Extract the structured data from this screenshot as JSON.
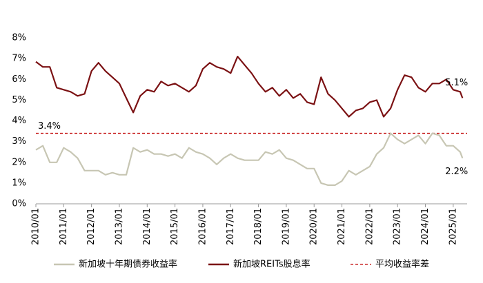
{
  "chart_data": {
    "type": "line",
    "x": [
      "2010/01",
      "2010/04",
      "2010/07",
      "2010/10",
      "2011/01",
      "2011/04",
      "2011/07",
      "2011/10",
      "2012/01",
      "2012/04",
      "2012/07",
      "2012/10",
      "2013/01",
      "2013/04",
      "2013/07",
      "2013/10",
      "2014/01",
      "2014/04",
      "2014/07",
      "2014/10",
      "2015/01",
      "2015/04",
      "2015/07",
      "2015/10",
      "2016/01",
      "2016/04",
      "2016/07",
      "2016/10",
      "2017/01",
      "2017/04",
      "2017/07",
      "2017/10",
      "2018/01",
      "2018/04",
      "2018/07",
      "2018/10",
      "2019/01",
      "2019/04",
      "2019/07",
      "2019/10",
      "2020/01",
      "2020/04",
      "2020/07",
      "2020/10",
      "2021/01",
      "2021/04",
      "2021/07",
      "2021/10",
      "2022/01",
      "2022/04",
      "2022/07",
      "2022/10",
      "2023/01",
      "2023/04",
      "2023/07",
      "2023/10",
      "2024/01",
      "2024/04",
      "2024/07",
      "2024/10",
      "2025/01",
      "2025/04",
      "2025/05"
    ],
    "xlim": [
      "2010/01",
      "2025/07"
    ],
    "xticks": [
      "2010/01",
      "2011/01",
      "2012/01",
      "2013/01",
      "2014/01",
      "2015/01",
      "2016/01",
      "2017/01",
      "2018/01",
      "2019/01",
      "2020/01",
      "2021/01",
      "2022/01",
      "2023/01",
      "2024/01",
      "2025/01"
    ],
    "ylim": [
      0,
      8
    ],
    "yticks": [
      {
        "value": 0,
        "label": "0%"
      },
      {
        "value": 1,
        "label": "1%"
      },
      {
        "value": 2,
        "label": "2%"
      },
      {
        "value": 3,
        "label": "3%"
      },
      {
        "value": 4,
        "label": "4%"
      },
      {
        "value": 5,
        "label": "5%"
      },
      {
        "value": 6,
        "label": "6%"
      },
      {
        "value": 7,
        "label": "7%"
      },
      {
        "value": 8,
        "label": "8%"
      }
    ],
    "grid": false,
    "series": [
      {
        "name": "新加坡十年期债券收益率",
        "color": "#c7c6b3",
        "values": [
          2.6,
          2.8,
          2.0,
          2.0,
          2.7,
          2.5,
          2.2,
          1.6,
          1.6,
          1.6,
          1.4,
          1.5,
          1.4,
          1.4,
          2.7,
          2.5,
          2.6,
          2.4,
          2.4,
          2.3,
          2.4,
          2.2,
          2.7,
          2.5,
          2.4,
          2.2,
          1.9,
          2.2,
          2.4,
          2.2,
          2.1,
          2.1,
          2.1,
          2.5,
          2.4,
          2.6,
          2.2,
          2.1,
          1.9,
          1.7,
          1.7,
          1.0,
          0.9,
          0.9,
          1.1,
          1.6,
          1.4,
          1.6,
          1.8,
          2.4,
          2.7,
          3.4,
          3.1,
          2.9,
          3.1,
          3.3,
          2.9,
          3.4,
          3.3,
          2.8,
          2.8,
          2.5,
          2.2
        ],
        "value_labels": [
          null,
          null,
          null,
          null,
          null,
          null,
          null,
          null,
          null,
          null,
          null,
          null,
          null,
          null,
          null,
          null,
          null,
          null,
          null,
          null,
          null,
          null,
          null,
          null,
          null,
          null,
          null,
          null,
          null,
          null,
          null,
          null,
          null,
          null,
          null,
          null,
          null,
          null,
          null,
          null,
          null,
          null,
          null,
          null,
          null,
          null,
          null,
          null,
          null,
          null,
          null,
          null,
          null,
          null,
          null,
          null,
          null,
          null,
          null,
          null,
          null,
          null,
          "2.2%"
        ]
      },
      {
        "name": "新加坡REITs股息率",
        "color": "#7b1113",
        "values": [
          6.85,
          6.6,
          6.6,
          5.6,
          5.5,
          5.4,
          5.2,
          5.3,
          6.4,
          6.8,
          6.4,
          6.1,
          5.8,
          5.1,
          4.4,
          5.2,
          5.5,
          5.4,
          5.9,
          5.7,
          5.8,
          5.6,
          5.4,
          5.7,
          6.5,
          6.8,
          6.6,
          6.5,
          6.3,
          7.1,
          6.7,
          6.3,
          5.8,
          5.4,
          5.6,
          5.2,
          5.5,
          5.1,
          5.3,
          4.9,
          4.8,
          6.1,
          5.3,
          5.0,
          4.6,
          4.2,
          4.5,
          4.6,
          4.9,
          5.0,
          4.2,
          4.6,
          5.5,
          6.2,
          6.1,
          5.6,
          5.4,
          5.8,
          5.8,
          6.0,
          5.5,
          5.4,
          5.1
        ],
        "value_labels": [
          null,
          null,
          null,
          null,
          null,
          null,
          null,
          null,
          null,
          null,
          null,
          null,
          null,
          null,
          null,
          null,
          null,
          null,
          null,
          null,
          null,
          null,
          null,
          null,
          null,
          null,
          null,
          null,
          null,
          null,
          null,
          null,
          null,
          null,
          null,
          null,
          null,
          null,
          null,
          null,
          null,
          null,
          null,
          null,
          null,
          null,
          null,
          null,
          null,
          null,
          null,
          null,
          null,
          null,
          null,
          null,
          null,
          null,
          null,
          null,
          null,
          null,
          "5.1%"
        ]
      }
    ],
    "reference_lines": [
      {
        "name": "平均收益率差",
        "value": 3.4,
        "label": "3.4%",
        "color": "#c00000"
      }
    ]
  }
}
